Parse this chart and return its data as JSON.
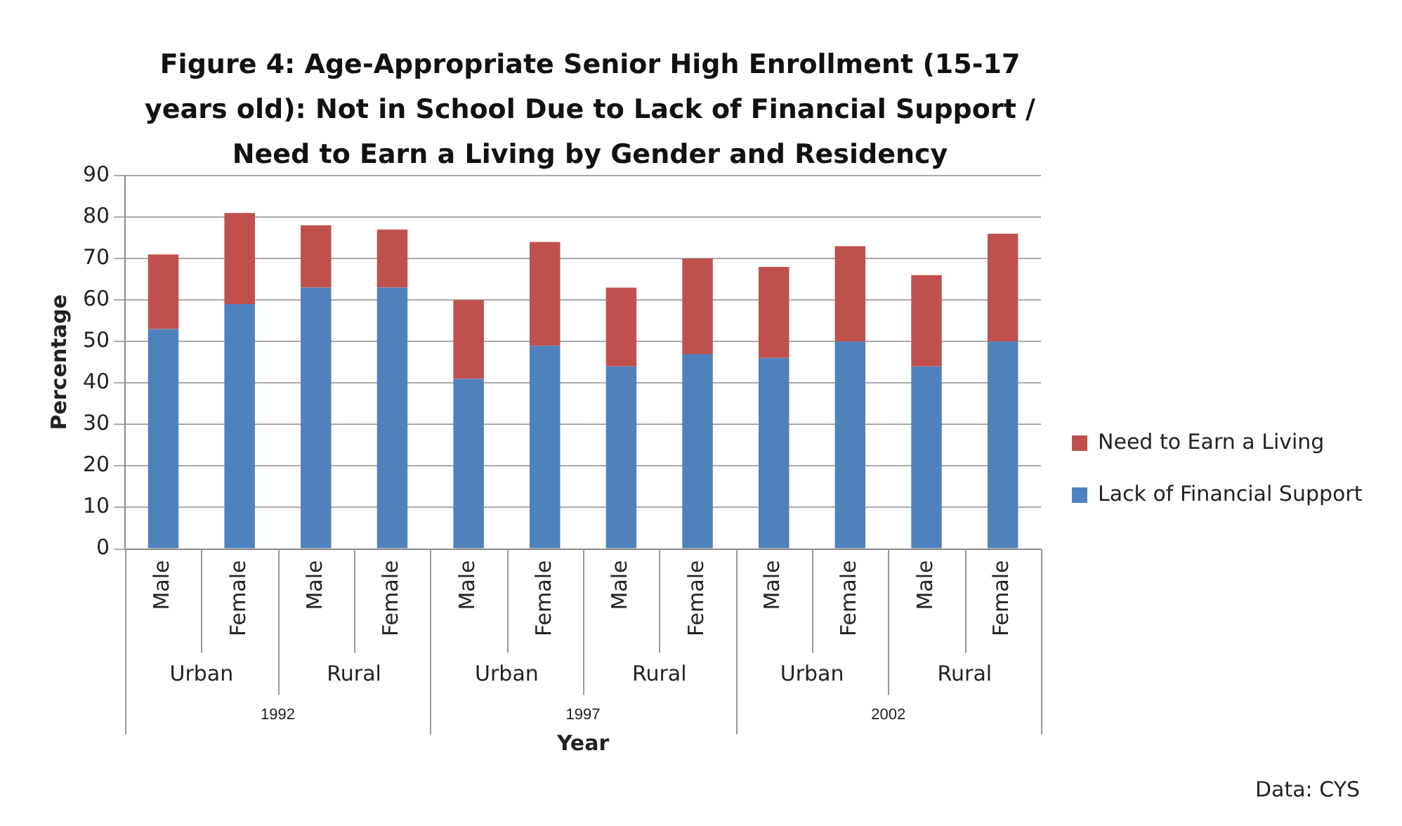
{
  "chart_data": {
    "type": "bar",
    "stacked": true,
    "title": "Figure 4: Age-Appropriate Senior High Enrollment (15-17 years old): Not in School Due to Lack of Financial Support / Need to Earn a Living by Gender and Residency",
    "xlabel": "Year",
    "ylabel": "Percentage",
    "categories": [
      "Male",
      "Female",
      "Male",
      "Female",
      "Male",
      "Female",
      "Male",
      "Female",
      "Male",
      "Female",
      "Male",
      "Female"
    ],
    "series": [
      {
        "name": "Lack of Financial Support",
        "color": "#4f81bd",
        "values": [
          53,
          59,
          63,
          63,
          41,
          49,
          44,
          47,
          46,
          50,
          44,
          50
        ]
      },
      {
        "name": "Need to Earn a Living",
        "color": "#c0504d",
        "values": [
          18,
          22,
          15,
          14,
          19,
          25,
          19,
          23,
          22,
          23,
          22,
          26
        ]
      }
    ],
    "ylim": [
      0,
      90
    ],
    "yticks": [
      0,
      10,
      20,
      30,
      40,
      50,
      60,
      70,
      80,
      90
    ],
    "grid": "y",
    "legend": "right",
    "annotations": [
      "Urban",
      "Rural",
      "Urban",
      "Rural",
      "Urban",
      "Rural",
      "1992",
      "1997",
      "2002",
      "Data: CYS"
    ]
  }
}
